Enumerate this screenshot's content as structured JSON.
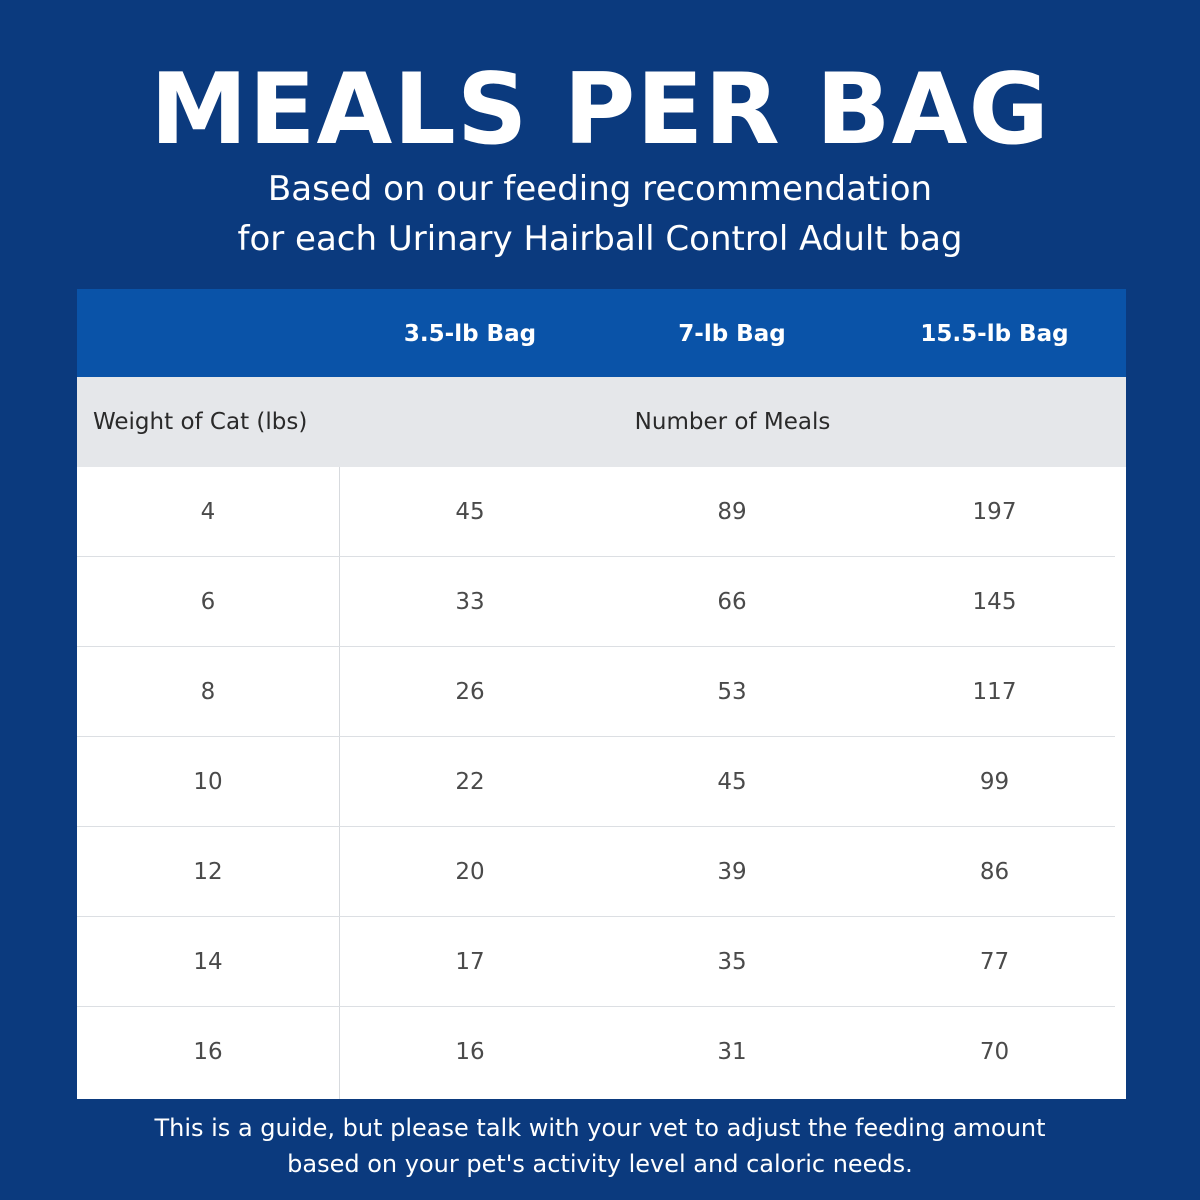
{
  "title": "MEALS PER BAG",
  "subtitle": {
    "line1": "Based on our feeding recommendation",
    "line2": "for each Urinary Hairball Control Adult bag"
  },
  "table": {
    "bag_headers": [
      "3.5-lb Bag",
      "7-lb Bag",
      "15.5-lb Bag"
    ],
    "row_header_label": "Weight of Cat (lbs)",
    "value_header_label": "Number of Meals",
    "rows": [
      {
        "weight": "4",
        "values": [
          "45",
          "89",
          "197"
        ]
      },
      {
        "weight": "6",
        "values": [
          "33",
          "66",
          "145"
        ]
      },
      {
        "weight": "8",
        "values": [
          "26",
          "53",
          "117"
        ]
      },
      {
        "weight": "10",
        "values": [
          "22",
          "45",
          "99"
        ]
      },
      {
        "weight": "12",
        "values": [
          "20",
          "39",
          "86"
        ]
      },
      {
        "weight": "14",
        "values": [
          "17",
          "35",
          "77"
        ]
      },
      {
        "weight": "16",
        "values": [
          "16",
          "31",
          "70"
        ]
      }
    ]
  },
  "footer": {
    "line1": "This is a guide, but please talk with your vet to adjust the feeding amount",
    "line2": "based on your pet's activity level and caloric needs."
  },
  "colors": {
    "background": "#0b3a7e",
    "header_band": "#0a53a8",
    "subheader_band": "#e5e7ea"
  }
}
